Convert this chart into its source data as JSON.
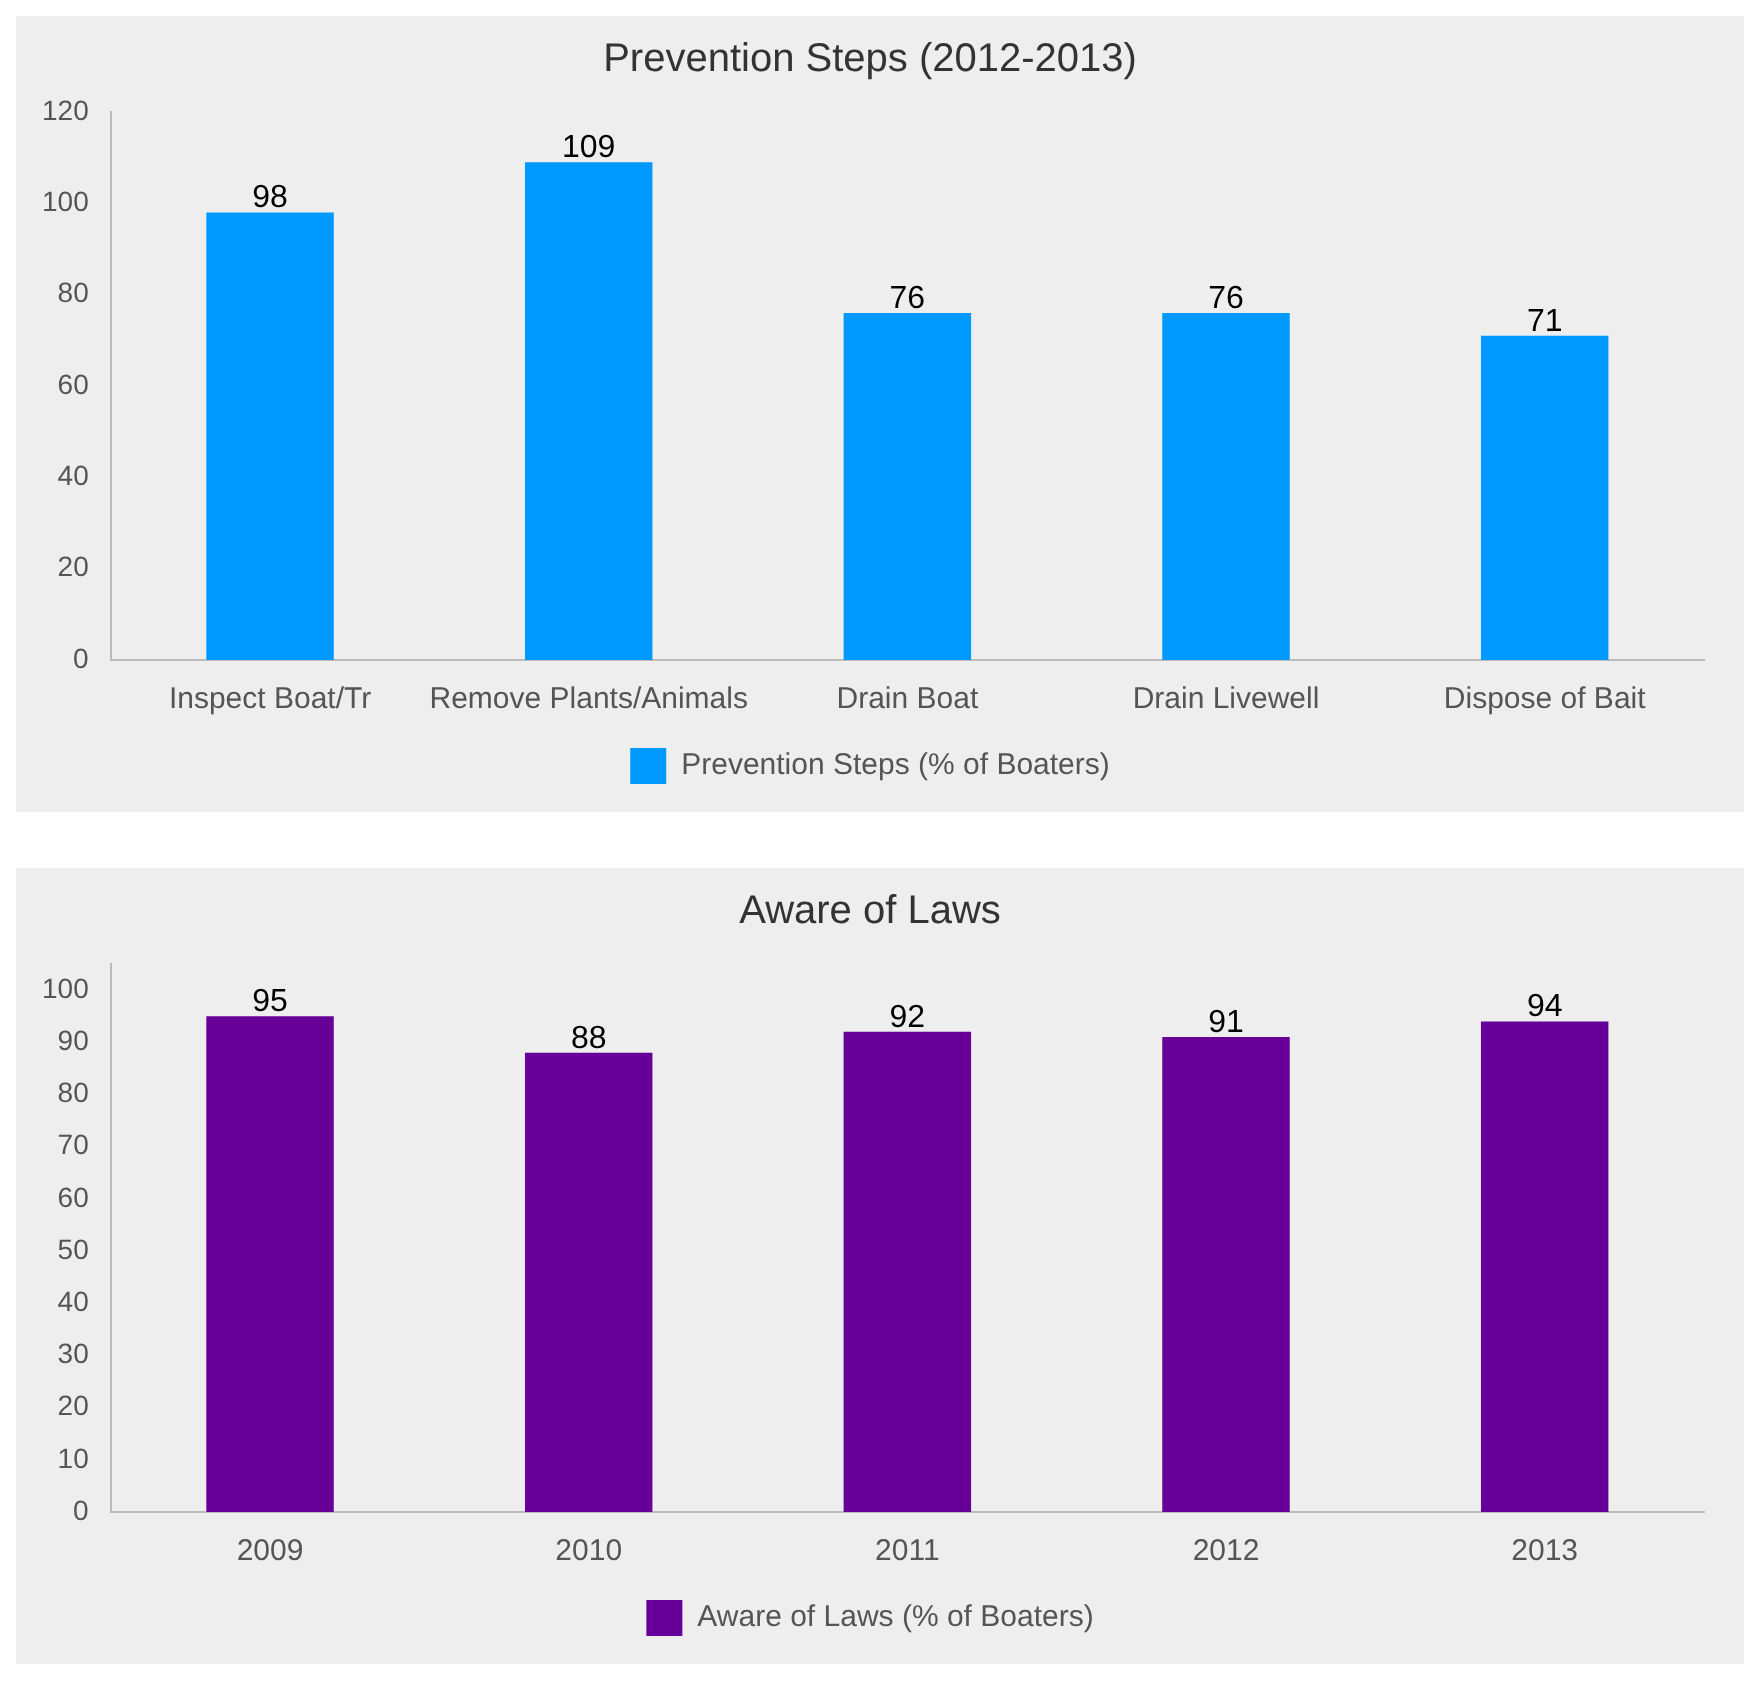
{
  "chart_data": [
    {
      "type": "bar",
      "title": "Prevention Steps (2012-2013)",
      "categories": [
        "Inspect Boat/Tr",
        "Remove Plants/Animals",
        "Drain Boat",
        "Drain Livewell",
        "Dispose of Bait"
      ],
      "series": [
        {
          "name": "Prevention Steps (% of Boaters)",
          "color": "#0099ff",
          "values": [
            98,
            109,
            76,
            76,
            71
          ]
        }
      ],
      "ylim": [
        0,
        120
      ],
      "yticks": [
        0,
        20,
        40,
        60,
        80,
        100,
        120
      ],
      "grid": false,
      "legend": "bottom",
      "data_labels": true
    },
    {
      "type": "bar",
      "title": "Aware of Laws",
      "categories": [
        "2009",
        "2010",
        "2011",
        "2012",
        "2013"
      ],
      "series": [
        {
          "name": "Aware of Laws (% of Boaters)",
          "color": "#660099",
          "values": [
            95,
            88,
            92,
            91,
            94
          ]
        }
      ],
      "ylim": [
        0,
        105
      ],
      "yticks": [
        0,
        10,
        20,
        30,
        40,
        50,
        60,
        70,
        80,
        90,
        100
      ],
      "grid": false,
      "legend": "bottom",
      "data_labels": true
    }
  ]
}
